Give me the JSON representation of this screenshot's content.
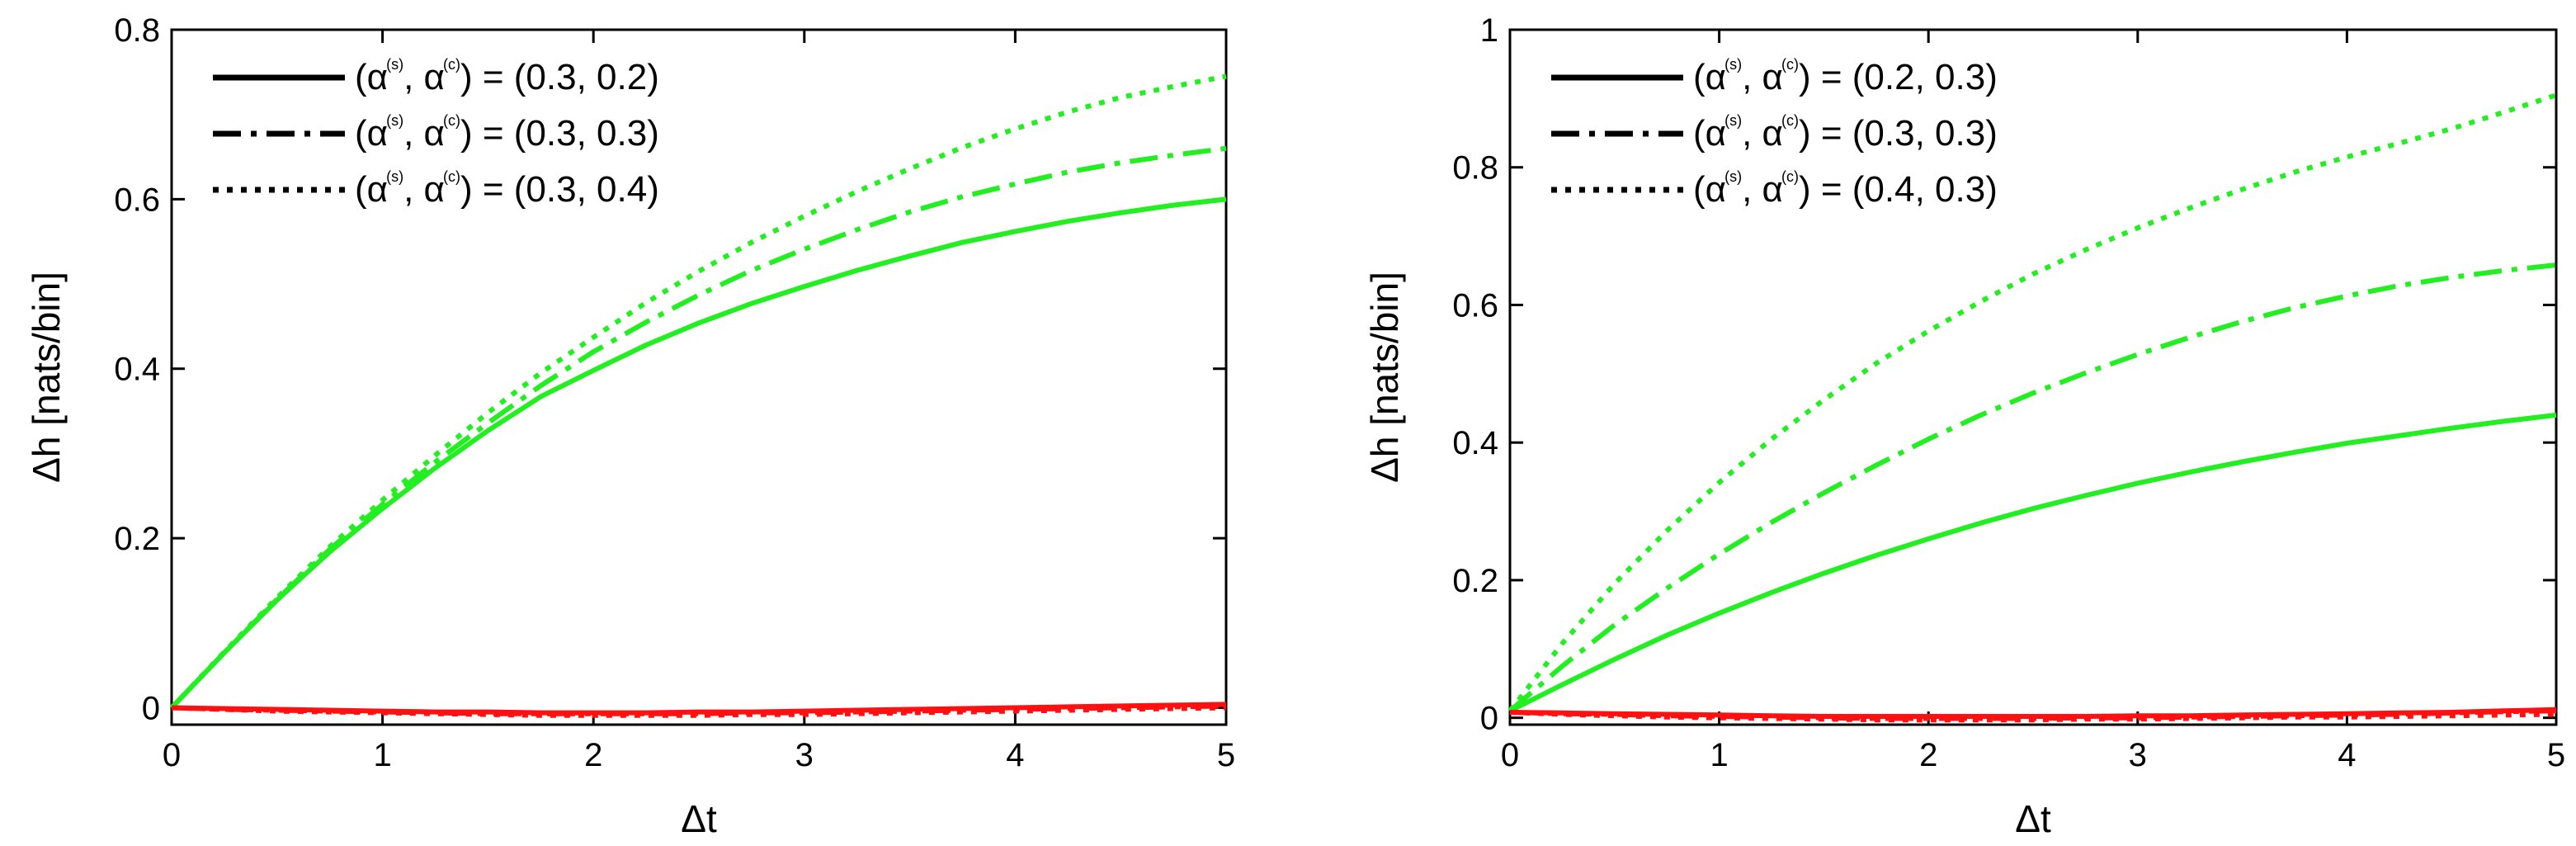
{
  "figure": {
    "colors": {
      "green": "#22ee22",
      "red": "#ff1111",
      "axis": "#000000",
      "background": "#ffffff"
    }
  },
  "chart_data": [
    {
      "type": "line",
      "id": "left",
      "xlabel": "Δt",
      "ylabel": "Δh [nats/bin]",
      "xlim": [
        0,
        5
      ],
      "ylim": [
        -0.02,
        0.8
      ],
      "xticks": [
        0,
        1,
        2,
        3,
        4,
        5
      ],
      "xtick_labels": [
        "0",
        "1",
        "2",
        "3",
        "4",
        "5"
      ],
      "yticks": [
        0,
        0.2,
        0.4,
        0.6,
        0.8
      ],
      "ytick_labels": [
        "0",
        "0.2",
        "0.4",
        "0.6",
        "0.8"
      ],
      "legend_position": "top-left",
      "legend": [
        {
          "style": "solid",
          "prefix": "(α",
          "sup1": "(s)",
          "mid": ", α",
          "sup2": "(c)",
          "suffix": ") = (0.3, 0.2)"
        },
        {
          "style": "dashdot",
          "prefix": "(α",
          "sup1": "(s)",
          "mid": ", α",
          "sup2": "(c)",
          "suffix": ") = (0.3, 0.3)"
        },
        {
          "style": "dotted",
          "prefix": "(α",
          "sup1": "(s)",
          "mid": ", α",
          "sup2": "(c)",
          "suffix": ") = (0.3, 0.4)"
        }
      ],
      "x": [
        0,
        0.25,
        0.5,
        0.75,
        1,
        1.25,
        1.5,
        1.75,
        2,
        2.25,
        2.5,
        2.75,
        3,
        3.25,
        3.5,
        3.75,
        4,
        4.25,
        4.5,
        4.75,
        5
      ],
      "series": [
        {
          "name": "(0.3, 0.2)",
          "color": "green",
          "style": "solid",
          "values": [
            0,
            0.065,
            0.127,
            0.184,
            0.235,
            0.283,
            0.327,
            0.367,
            0.398,
            0.428,
            0.454,
            0.477,
            0.497,
            0.516,
            0.533,
            0.549,
            0.562,
            0.574,
            0.584,
            0.593,
            0.6
          ]
        },
        {
          "name": "(0.3, 0.3)",
          "color": "green",
          "style": "dashdot",
          "values": [
            0,
            0.065,
            0.128,
            0.187,
            0.24,
            0.29,
            0.336,
            0.38,
            0.42,
            0.455,
            0.487,
            0.516,
            0.541,
            0.564,
            0.585,
            0.603,
            0.618,
            0.632,
            0.643,
            0.652,
            0.66
          ]
        },
        {
          "name": "(0.3, 0.4)",
          "color": "green",
          "style": "dotted",
          "values": [
            0,
            0.066,
            0.13,
            0.19,
            0.245,
            0.298,
            0.348,
            0.395,
            0.437,
            0.478,
            0.515,
            0.549,
            0.58,
            0.609,
            0.636,
            0.661,
            0.683,
            0.703,
            0.72,
            0.733,
            0.745
          ]
        },
        {
          "name": "(0.3, 0.2) red",
          "color": "red",
          "style": "solid",
          "values": [
            0,
            -0.001,
            -0.002,
            -0.003,
            -0.004,
            -0.005,
            -0.005,
            -0.006,
            -0.006,
            -0.006,
            -0.005,
            -0.005,
            -0.004,
            -0.003,
            -0.002,
            -0.001,
            0.0,
            0.001,
            0.002,
            0.003,
            0.004
          ]
        },
        {
          "name": "(0.3, 0.3) red",
          "color": "red",
          "style": "dashdot",
          "values": [
            0,
            -0.002,
            -0.003,
            -0.004,
            -0.005,
            -0.006,
            -0.007,
            -0.007,
            -0.007,
            -0.007,
            -0.007,
            -0.006,
            -0.006,
            -0.005,
            -0.004,
            -0.003,
            -0.002,
            -0.001,
            0.0,
            0.001,
            0.002
          ]
        },
        {
          "name": "(0.3, 0.4) red",
          "color": "red",
          "style": "dotted",
          "values": [
            0,
            -0.002,
            -0.004,
            -0.005,
            -0.006,
            -0.007,
            -0.008,
            -0.009,
            -0.009,
            -0.009,
            -0.009,
            -0.008,
            -0.008,
            -0.007,
            -0.006,
            -0.005,
            -0.004,
            -0.003,
            -0.002,
            -0.001,
            0.0
          ]
        }
      ]
    },
    {
      "type": "line",
      "id": "right",
      "xlabel": "Δt",
      "ylabel": "Δh [nats/bin]",
      "xlim": [
        0,
        5
      ],
      "ylim": [
        -0.01,
        1
      ],
      "xticks": [
        0,
        1,
        2,
        3,
        4,
        5
      ],
      "xtick_labels": [
        "0",
        "1",
        "2",
        "3",
        "4",
        "5"
      ],
      "yticks": [
        0,
        0.2,
        0.4,
        0.6,
        0.8,
        1
      ],
      "ytick_labels": [
        "0",
        "0.2",
        "0.4",
        "0.6",
        "0.8",
        "1"
      ],
      "legend_position": "top-left",
      "legend": [
        {
          "style": "solid",
          "prefix": "(α",
          "sup1": "(s)",
          "mid": ", α",
          "sup2": "(c)",
          "suffix": ") = (0.2, 0.3)"
        },
        {
          "style": "dashdot",
          "prefix": "(α",
          "sup1": "(s)",
          "mid": ", α",
          "sup2": "(c)",
          "suffix": ") = (0.3, 0.3)"
        },
        {
          "style": "dotted",
          "prefix": "(α",
          "sup1": "(s)",
          "mid": ", α",
          "sup2": "(c)",
          "suffix": ") = (0.4, 0.3)"
        }
      ],
      "x": [
        0,
        0.25,
        0.5,
        0.75,
        1,
        1.25,
        1.5,
        1.75,
        2,
        2.25,
        2.5,
        2.75,
        3,
        3.25,
        3.5,
        3.75,
        4,
        4.25,
        4.5,
        4.75,
        5
      ],
      "series": [
        {
          "name": "(0.2, 0.3)",
          "color": "green",
          "style": "solid",
          "values": [
            0.01,
            0.048,
            0.085,
            0.12,
            0.152,
            0.182,
            0.21,
            0.236,
            0.26,
            0.283,
            0.304,
            0.323,
            0.341,
            0.357,
            0.372,
            0.386,
            0.399,
            0.41,
            0.421,
            0.431,
            0.44
          ]
        },
        {
          "name": "(0.3, 0.3)",
          "color": "green",
          "style": "dashdot",
          "values": [
            0.01,
            0.075,
            0.135,
            0.188,
            0.238,
            0.284,
            0.327,
            0.367,
            0.405,
            0.44,
            0.472,
            0.501,
            0.528,
            0.553,
            0.576,
            0.596,
            0.613,
            0.628,
            0.64,
            0.65,
            0.658
          ]
        },
        {
          "name": "(0.4, 0.3)",
          "color": "green",
          "style": "dotted",
          "values": [
            0.01,
            0.108,
            0.195,
            0.272,
            0.342,
            0.405,
            0.462,
            0.515,
            0.562,
            0.605,
            0.645,
            0.68,
            0.712,
            0.741,
            0.768,
            0.793,
            0.815,
            0.835,
            0.856,
            0.88,
            0.905
          ]
        },
        {
          "name": "(0.2, 0.3) red",
          "color": "red",
          "style": "solid",
          "values": [
            0.008,
            0.007,
            0.006,
            0.005,
            0.004,
            0.003,
            0.002,
            0.002,
            0.002,
            0.002,
            0.002,
            0.002,
            0.003,
            0.003,
            0.004,
            0.005,
            0.006,
            0.007,
            0.008,
            0.01,
            0.012
          ]
        },
        {
          "name": "(0.3, 0.3) red",
          "color": "red",
          "style": "dashdot",
          "values": [
            0.008,
            0.006,
            0.005,
            0.003,
            0.002,
            0.001,
            0.0,
            -0.001,
            -0.001,
            -0.001,
            -0.001,
            0.0,
            0.0,
            0.001,
            0.002,
            0.003,
            0.004,
            0.005,
            0.007,
            0.009,
            0.01
          ]
        },
        {
          "name": "(0.4, 0.3) red",
          "color": "red",
          "style": "dotted",
          "values": [
            0.008,
            0.005,
            0.003,
            0.001,
            0.0,
            -0.001,
            -0.002,
            -0.003,
            -0.003,
            -0.003,
            -0.003,
            -0.002,
            -0.002,
            -0.001,
            0.0,
            0.001,
            0.001,
            0.002,
            0.003,
            0.004,
            0.005
          ]
        }
      ]
    }
  ]
}
